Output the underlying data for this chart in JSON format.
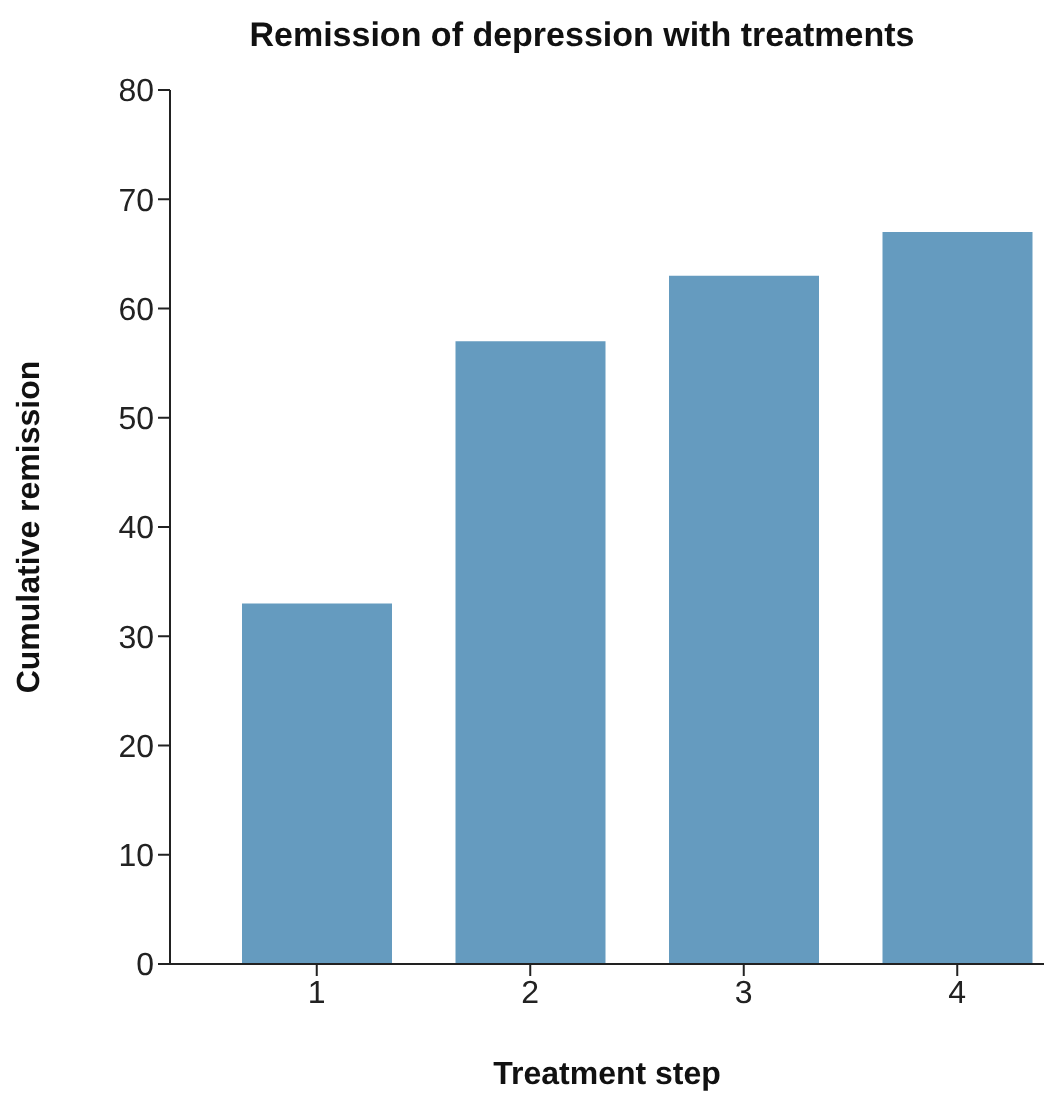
{
  "chart_data": {
    "type": "bar",
    "title": "Remission of depression with treatments",
    "xlabel": "Treatment step",
    "ylabel": "Cumulative remission",
    "categories": [
      "1",
      "2",
      "3",
      "4"
    ],
    "values": [
      33,
      57,
      63,
      67
    ],
    "color": "#659bbf",
    "ylim": [
      0,
      80
    ],
    "yticks": [
      0,
      10,
      20,
      30,
      40,
      50,
      60,
      70,
      80
    ],
    "grid": false
  }
}
